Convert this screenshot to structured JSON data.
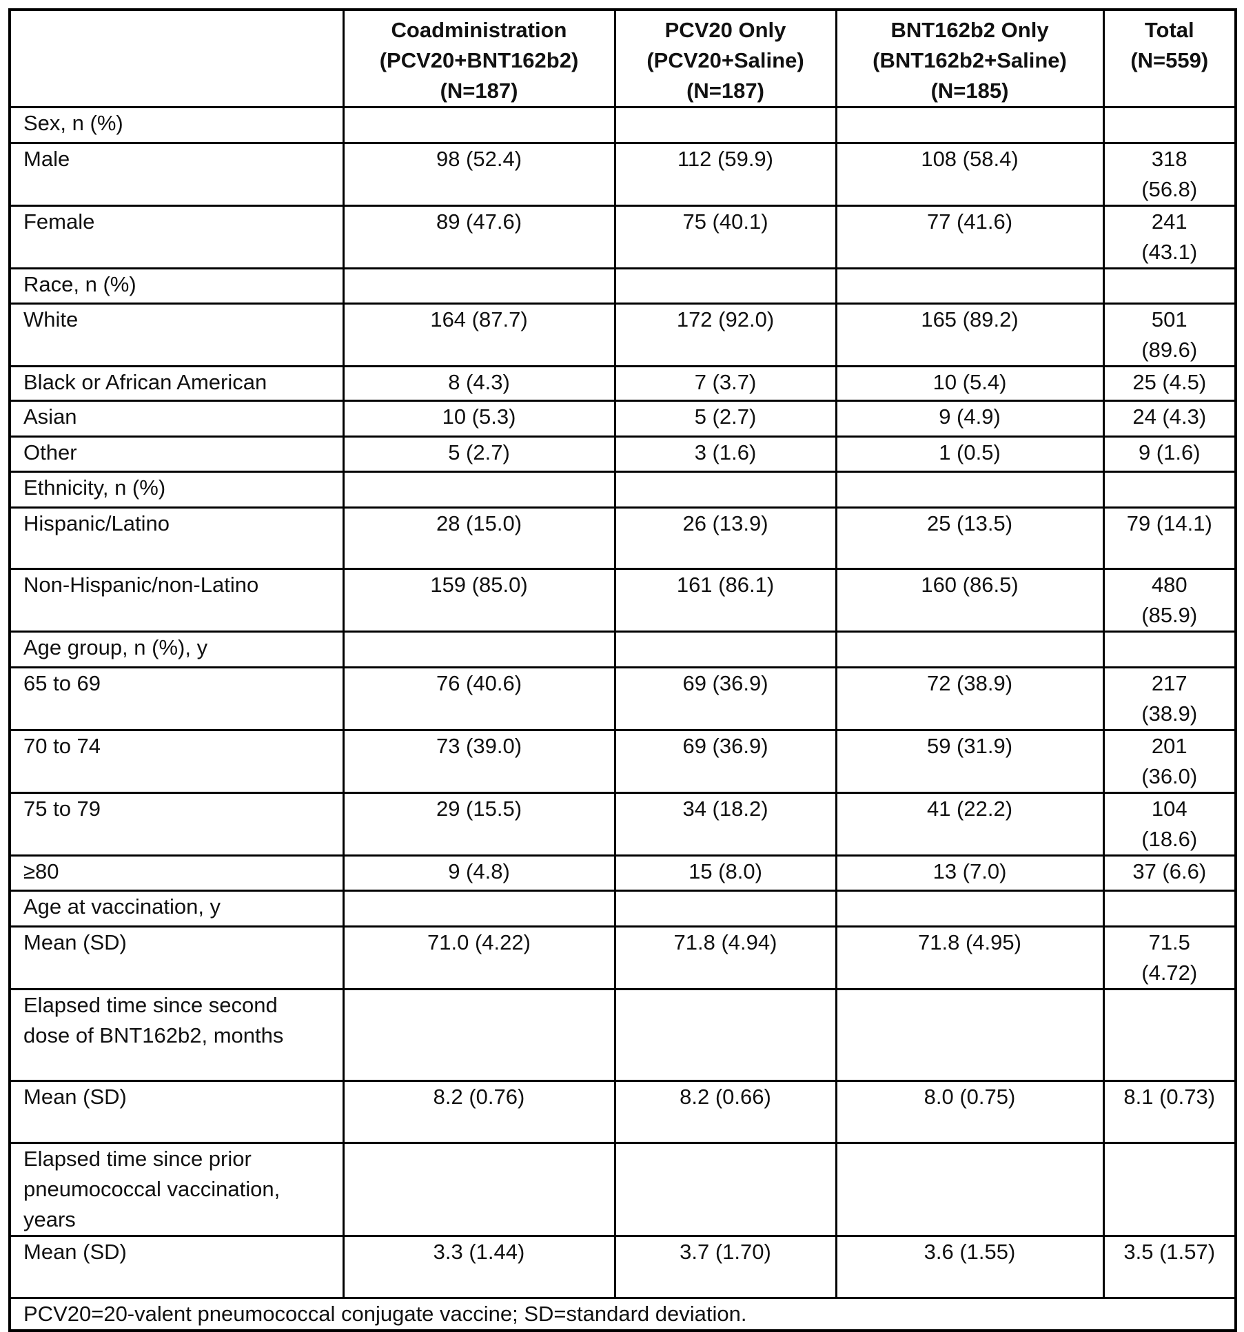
{
  "header": {
    "columns": [
      {
        "line1": "Coadministration",
        "line2": "(PCV20+BNT162b2)",
        "line3": "(N=187)"
      },
      {
        "line1": "PCV20 Only",
        "line2": "(PCV20+Saline)",
        "line3": "(N=187)"
      },
      {
        "line1": "BNT162b2 Only",
        "line2": "(BNT162b2+Saline)",
        "line3": "(N=185)"
      },
      {
        "line1": "Total",
        "line2": "(N=559)",
        "line3": ""
      }
    ]
  },
  "rows": [
    {
      "label": "Sex, n (%)",
      "values": [
        "",
        "",
        "",
        ""
      ]
    },
    {
      "label": "Male",
      "values": [
        "98 (52.4)",
        "112 (59.9)",
        "108 (58.4)",
        "318 (56.8)"
      ]
    },
    {
      "label": "Female",
      "values": [
        "89 (47.6)",
        "75 (40.1)",
        "77 (41.6)",
        "241 (43.1)"
      ]
    },
    {
      "label": "Race, n (%)",
      "values": [
        "",
        "",
        "",
        ""
      ]
    },
    {
      "label": "White",
      "values": [
        "164 (87.7)",
        "172 (92.0)",
        "165 (89.2)",
        "501 (89.6)"
      ]
    },
    {
      "label": "Black or African American",
      "values": [
        "8 (4.3)",
        "7 (3.7)",
        "10 (5.4)",
        "25 (4.5)"
      ]
    },
    {
      "label": "Asian",
      "values": [
        "10 (5.3)",
        "5 (2.7)",
        "9 (4.9)",
        "24 (4.3)"
      ]
    },
    {
      "label": "Other",
      "values": [
        "5 (2.7)",
        "3 (1.6)",
        "1 (0.5)",
        "9 (1.6)"
      ]
    },
    {
      "label": "Ethnicity, n (%)",
      "values": [
        "",
        "",
        "",
        ""
      ]
    },
    {
      "label": "Hispanic/Latino",
      "values": [
        "28 (15.0)",
        "26 (13.9)",
        "25 (13.5)",
        "79 (14.1)"
      ]
    },
    {
      "label": "Non-Hispanic/non-Latino",
      "values": [
        "159 (85.0)",
        "161 (86.1)",
        "160 (86.5)",
        "480 (85.9)"
      ]
    },
    {
      "label": "Age group, n (%), y",
      "values": [
        "",
        "",
        "",
        ""
      ]
    },
    {
      "label": "65 to 69",
      "values": [
        "76 (40.6)",
        "69 (36.9)",
        "72 (38.9)",
        "217 (38.9)"
      ]
    },
    {
      "label": "70 to 74",
      "values": [
        "73 (39.0)",
        "69 (36.9)",
        "59 (31.9)",
        "201 (36.0)"
      ]
    },
    {
      "label": "75 to 79",
      "values": [
        "29 (15.5)",
        "34 (18.2)",
        "41 (22.2)",
        "104 (18.6)"
      ]
    },
    {
      "label": "≥80",
      "values": [
        "9 (4.8)",
        "15 (8.0)",
        "13 (7.0)",
        "37 (6.6)"
      ]
    },
    {
      "label": "Age at vaccination, y",
      "values": [
        "",
        "",
        "",
        ""
      ]
    },
    {
      "label": "Mean (SD)",
      "values": [
        "71.0 (4.22)",
        "71.8 (4.94)",
        "71.8 (4.95)",
        "71.5 (4.72)"
      ]
    },
    {
      "label": "Elapsed time since second dose of BNT162b2, months",
      "values": [
        "",
        "",
        "",
        ""
      ]
    },
    {
      "label": "Mean (SD)",
      "values": [
        "8.2 (0.76)",
        "8.2 (0.66)",
        "8.0 (0.75)",
        "8.1 (0.73)"
      ]
    },
    {
      "label": "Elapsed time since prior pneumococcal vaccination, years",
      "values": [
        "",
        "",
        "",
        ""
      ]
    },
    {
      "label": "Mean (SD)",
      "values": [
        "3.3 (1.44)",
        "3.7 (1.70)",
        "3.6 (1.55)",
        "3.5 (1.57)"
      ]
    }
  ],
  "footnote": "PCV20=20-valent pneumococcal conjugate vaccine; SD=standard deviation."
}
